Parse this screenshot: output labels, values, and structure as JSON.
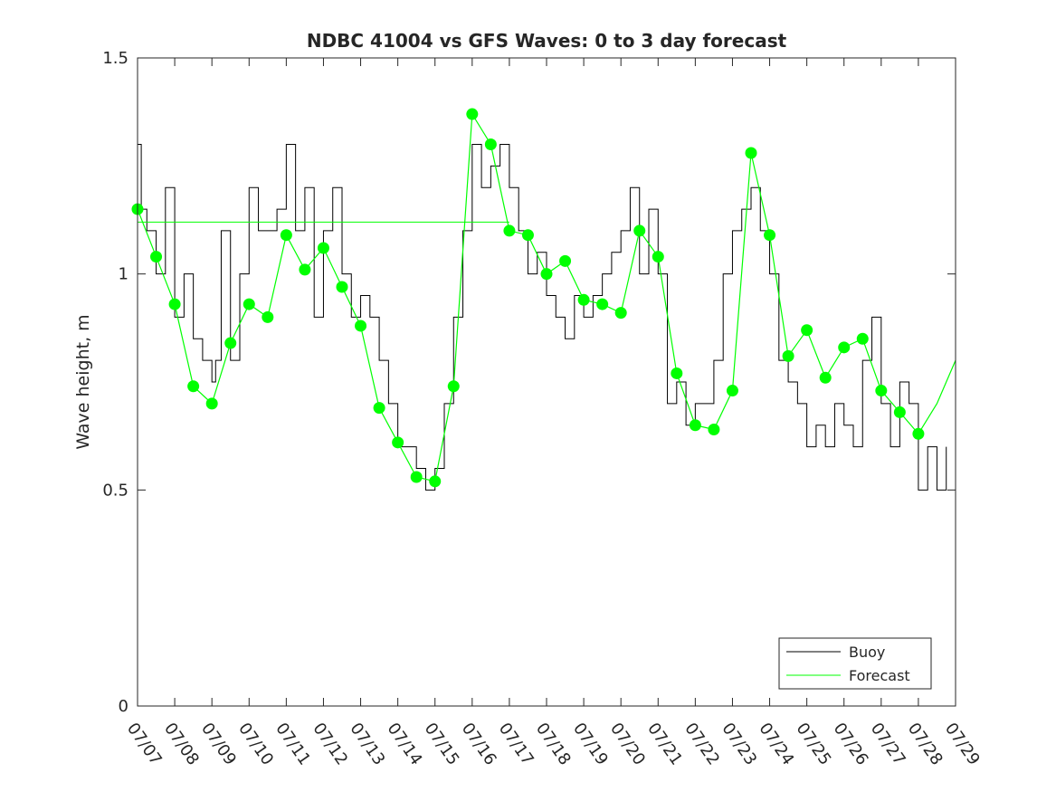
{
  "chart_data": {
    "type": "line",
    "title": "NDBC 41004 vs GFS Waves: 0 to 3 day forecast",
    "ylabel": "Wave height, m",
    "xlabel": "",
    "xlim": [
      0,
      22
    ],
    "ylim": [
      0,
      1.5
    ],
    "yticks": [
      {
        "value": 0,
        "label": "0"
      },
      {
        "value": 0.5,
        "label": "0.5"
      },
      {
        "value": 1,
        "label": "1"
      },
      {
        "value": 1.5,
        "label": "1.5"
      }
    ],
    "xticks": [
      {
        "value": 0,
        "label": "07/07"
      },
      {
        "value": 1,
        "label": "07/08"
      },
      {
        "value": 2,
        "label": "07/09"
      },
      {
        "value": 3,
        "label": "07/10"
      },
      {
        "value": 4,
        "label": "07/11"
      },
      {
        "value": 5,
        "label": "07/12"
      },
      {
        "value": 6,
        "label": "07/13"
      },
      {
        "value": 7,
        "label": "07/14"
      },
      {
        "value": 8,
        "label": "07/15"
      },
      {
        "value": 9,
        "label": "07/16"
      },
      {
        "value": 10,
        "label": "07/17"
      },
      {
        "value": 11,
        "label": "07/18"
      },
      {
        "value": 12,
        "label": "07/19"
      },
      {
        "value": 13,
        "label": "07/20"
      },
      {
        "value": 14,
        "label": "07/21"
      },
      {
        "value": 15,
        "label": "07/22"
      },
      {
        "value": 16,
        "label": "07/23"
      },
      {
        "value": 17,
        "label": "07/24"
      },
      {
        "value": 18,
        "label": "07/25"
      },
      {
        "value": 19,
        "label": "07/26"
      },
      {
        "value": 20,
        "label": "07/27"
      },
      {
        "value": 21,
        "label": "07/28"
      },
      {
        "value": 22,
        "label": "07/29"
      }
    ],
    "legend": {
      "position": "bottom-right",
      "entries": [
        "Buoy",
        "Forecast"
      ]
    },
    "colors": {
      "buoy": "#000000",
      "forecast": "#00ff00",
      "axes": "#262626"
    },
    "series": [
      {
        "name": "Buoy",
        "x": [
          0,
          0.1,
          0.25,
          0.5,
          0.75,
          1.0,
          1.25,
          1.5,
          1.75,
          2.0,
          2.1,
          2.25,
          2.5,
          2.75,
          3.0,
          3.25,
          3.5,
          3.75,
          4.0,
          4.25,
          4.5,
          4.75,
          5.0,
          5.25,
          5.5,
          5.75,
          6.0,
          6.25,
          6.5,
          6.75,
          7.0,
          7.25,
          7.5,
          7.75,
          8.0,
          8.25,
          8.5,
          8.75,
          9.0,
          9.25,
          9.5,
          9.75,
          10.0,
          10.25,
          10.5,
          10.75,
          11.0,
          11.25,
          11.5,
          11.75,
          12.0,
          12.25,
          12.5,
          12.75,
          13.0,
          13.25,
          13.5,
          13.75,
          14.0,
          14.25,
          14.5,
          14.75,
          15.0,
          15.25,
          15.5,
          15.75,
          16.0,
          16.25,
          16.5,
          16.75,
          17.0,
          17.25,
          17.5,
          17.75,
          18.0,
          18.25,
          18.5,
          18.75,
          19.0,
          19.25,
          19.5,
          19.75,
          20.0,
          20.25,
          20.5,
          20.75,
          21.0,
          21.25,
          21.5,
          21.75,
          22.0
        ],
        "values": [
          1.3,
          1.15,
          1.1,
          1.0,
          1.2,
          0.9,
          1.0,
          0.85,
          0.8,
          0.75,
          0.8,
          1.1,
          0.8,
          1.0,
          1.2,
          1.1,
          1.1,
          1.15,
          1.3,
          1.1,
          1.2,
          0.9,
          1.1,
          1.2,
          1.0,
          0.9,
          0.95,
          0.9,
          0.8,
          0.7,
          0.6,
          0.6,
          0.55,
          0.5,
          0.55,
          0.7,
          0.9,
          1.1,
          1.3,
          1.2,
          1.25,
          1.3,
          1.2,
          1.1,
          1.0,
          1.05,
          0.95,
          0.9,
          0.85,
          0.95,
          0.9,
          0.95,
          1.0,
          1.05,
          1.1,
          1.2,
          1.0,
          1.15,
          1.0,
          0.7,
          0.75,
          0.65,
          0.7,
          0.7,
          0.8,
          1.0,
          1.1,
          1.15,
          1.2,
          1.1,
          1.0,
          0.8,
          0.75,
          0.7,
          0.6,
          0.65,
          0.6,
          0.7,
          0.65,
          0.6,
          0.8,
          0.9,
          0.7,
          0.6,
          0.75,
          0.7,
          0.5,
          0.6,
          0.5,
          0.6,
          null
        ]
      },
      {
        "name": "Forecast",
        "x": [
          0,
          0.5,
          1.0,
          1.5,
          2.0,
          2.5,
          3.0,
          3.5,
          4.0,
          4.5,
          5.0,
          5.5,
          6.0,
          6.5,
          7.0,
          7.5,
          8.0,
          8.5,
          9.0,
          9.5,
          10.0,
          10.5,
          11.0,
          11.5,
          12.0,
          12.5,
          13.0,
          13.5,
          14.0,
          14.5,
          15.0,
          15.5,
          16.0,
          16.5,
          17.0,
          17.5,
          18.0,
          18.5,
          19.0,
          19.5,
          20.0,
          20.5,
          21.0,
          21.5,
          22.0
        ],
        "values": [
          1.15,
          1.04,
          0.93,
          0.74,
          0.7,
          0.84,
          0.93,
          0.9,
          1.09,
          1.01,
          1.06,
          0.97,
          0.88,
          0.69,
          0.61,
          0.53,
          0.52,
          0.74,
          1.37,
          1.3,
          1.1,
          1.09,
          1.0,
          1.03,
          0.94,
          0.93,
          0.91,
          1.1,
          1.04,
          0.77,
          0.65,
          0.64,
          0.73,
          1.28,
          1.09,
          0.81,
          0.87,
          0.76,
          0.83,
          0.85,
          0.73,
          0.68,
          0.63,
          0.7,
          0.8
        ]
      }
    ],
    "forecast_markers": {
      "x": [
        0,
        0.5,
        1.0,
        1.5,
        2.0,
        2.5,
        3.0,
        3.5,
        4.0,
        4.5,
        5.0,
        5.5,
        6.0,
        6.5,
        7.0,
        7.5,
        8.0,
        8.5,
        9.0,
        9.5,
        10.0,
        10.5,
        11.0,
        11.5,
        12.0,
        12.5,
        13.0,
        13.5,
        14.0,
        14.5,
        15.0,
        15.5,
        16.0,
        16.5,
        17.0,
        17.5,
        18.0,
        18.5,
        19.0,
        19.5,
        20.0,
        20.5,
        21.0
      ],
      "values": [
        1.15,
        1.04,
        0.93,
        0.74,
        0.7,
        0.84,
        0.93,
        0.9,
        1.09,
        1.01,
        1.06,
        0.97,
        0.88,
        0.69,
        0.61,
        0.53,
        0.52,
        0.74,
        1.37,
        1.3,
        1.1,
        1.09,
        1.0,
        1.03,
        0.94,
        0.93,
        0.91,
        1.1,
        1.04,
        0.77,
        0.65,
        0.64,
        0.73,
        1.28,
        1.09,
        0.81,
        0.87,
        0.76,
        0.83,
        0.85,
        0.73,
        0.68,
        0.63
      ]
    },
    "reference_line": {
      "value": 1.12,
      "x": [
        0,
        10
      ]
    }
  }
}
